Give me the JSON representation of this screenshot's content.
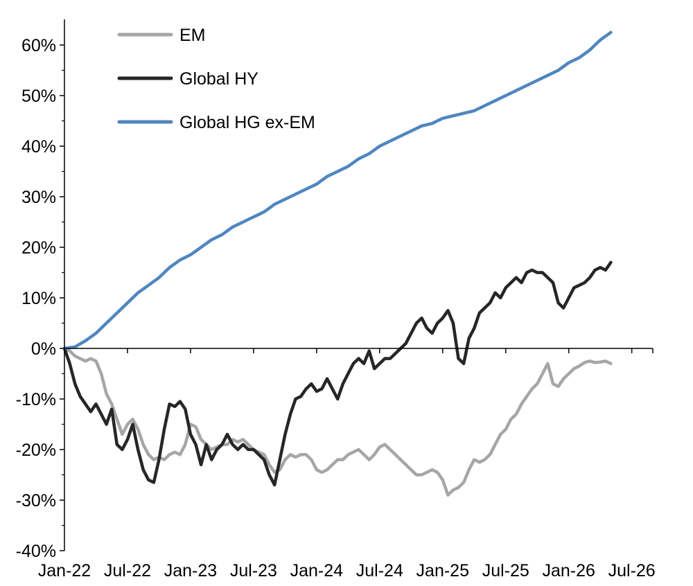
{
  "chart_data": {
    "type": "line",
    "title": "",
    "xlabel": "",
    "ylabel": "",
    "x_ticks": [
      "Jan-22",
      "Jul-22",
      "Jan-23",
      "Jul-23",
      "Jan-24",
      "Jul-24",
      "Jan-25",
      "Jul-25",
      "Jan-26",
      "Jul-26"
    ],
    "y_ticks": [
      "60%",
      "50%",
      "40%",
      "30%",
      "20%",
      "10%",
      "0%",
      "-10%",
      "-20%",
      "-30%",
      "-40%"
    ],
    "ylim": [
      -40,
      65
    ],
    "xlim": [
      0,
      56
    ],
    "y_unit": "%",
    "x_unit": "months since Jan-22",
    "legend_position": "top-left",
    "grid": false,
    "series": [
      {
        "name": "EM",
        "color": "#a6a6a6",
        "points": [
          [
            0,
            0
          ],
          [
            0.5,
            -0.5
          ],
          [
            1,
            -1.5
          ],
          [
            1.5,
            -2
          ],
          [
            2,
            -2.5
          ],
          [
            2.5,
            -2
          ],
          [
            3,
            -2.5
          ],
          [
            3.5,
            -5
          ],
          [
            4,
            -9
          ],
          [
            4.5,
            -11
          ],
          [
            5,
            -14
          ],
          [
            5.5,
            -17
          ],
          [
            6,
            -15
          ],
          [
            6.5,
            -14
          ],
          [
            7,
            -16
          ],
          [
            7.5,
            -19
          ],
          [
            8,
            -21
          ],
          [
            8.5,
            -22
          ],
          [
            9,
            -21.5
          ],
          [
            9.5,
            -22
          ],
          [
            10,
            -21
          ],
          [
            10.5,
            -20.5
          ],
          [
            11,
            -21
          ],
          [
            11.5,
            -19
          ],
          [
            12,
            -15
          ],
          [
            12.5,
            -15.5
          ],
          [
            13,
            -18
          ],
          [
            13.5,
            -19
          ],
          [
            14,
            -20
          ],
          [
            14.5,
            -19.5
          ],
          [
            15,
            -19
          ],
          [
            15.5,
            -19
          ],
          [
            16,
            -18
          ],
          [
            16.5,
            -18.5
          ],
          [
            17,
            -18
          ],
          [
            17.5,
            -19
          ],
          [
            18,
            -20
          ],
          [
            18.5,
            -20.5
          ],
          [
            19,
            -21
          ],
          [
            19.5,
            -23
          ],
          [
            20,
            -24.5
          ],
          [
            20.5,
            -24
          ],
          [
            21,
            -22
          ],
          [
            21.5,
            -21
          ],
          [
            22,
            -21.5
          ],
          [
            22.5,
            -21
          ],
          [
            23,
            -21
          ],
          [
            23.5,
            -22
          ],
          [
            24,
            -24
          ],
          [
            24.5,
            -24.5
          ],
          [
            25,
            -24
          ],
          [
            25.5,
            -23
          ],
          [
            26,
            -22
          ],
          [
            26.5,
            -22
          ],
          [
            27,
            -21
          ],
          [
            27.5,
            -20.5
          ],
          [
            28,
            -20
          ],
          [
            28.5,
            -21
          ],
          [
            29,
            -22
          ],
          [
            29.5,
            -21
          ],
          [
            30,
            -19.5
          ],
          [
            30.5,
            -19
          ],
          [
            31,
            -20
          ],
          [
            31.5,
            -21
          ],
          [
            32,
            -22
          ],
          [
            32.5,
            -23
          ],
          [
            33,
            -24
          ],
          [
            33.5,
            -25
          ],
          [
            34,
            -25
          ],
          [
            34.5,
            -24.5
          ],
          [
            35,
            -24
          ],
          [
            35.5,
            -24.5
          ],
          [
            36,
            -26
          ],
          [
            36.5,
            -29
          ],
          [
            37,
            -28
          ],
          [
            37.5,
            -27.5
          ],
          [
            38,
            -26.5
          ],
          [
            38.5,
            -24
          ],
          [
            39,
            -22
          ],
          [
            39.5,
            -22.5
          ],
          [
            40,
            -22
          ],
          [
            40.5,
            -21
          ],
          [
            41,
            -19
          ],
          [
            41.5,
            -17
          ],
          [
            42,
            -16
          ],
          [
            42.5,
            -14
          ],
          [
            43,
            -13
          ],
          [
            43.5,
            -11
          ],
          [
            44,
            -9.5
          ],
          [
            44.5,
            -8
          ],
          [
            45,
            -7
          ],
          [
            45.5,
            -5
          ],
          [
            46,
            -3
          ],
          [
            46.5,
            -7
          ],
          [
            47,
            -7.5
          ],
          [
            47.5,
            -6
          ],
          [
            48,
            -5
          ],
          [
            48.5,
            -4
          ],
          [
            49,
            -3.5
          ],
          [
            49.5,
            -2.8
          ],
          [
            50,
            -2.5
          ],
          [
            50.5,
            -2.8
          ],
          [
            51,
            -2.7
          ],
          [
            51.5,
            -2.5
          ],
          [
            52,
            -3
          ]
        ]
      },
      {
        "name": "Global HY",
        "color": "#262626",
        "points": [
          [
            0,
            0
          ],
          [
            0.5,
            -3
          ],
          [
            1,
            -7
          ],
          [
            1.5,
            -9.5
          ],
          [
            2,
            -11
          ],
          [
            2.5,
            -12.5
          ],
          [
            3,
            -11
          ],
          [
            3.5,
            -13
          ],
          [
            4,
            -15
          ],
          [
            4.5,
            -12
          ],
          [
            5,
            -19
          ],
          [
            5.5,
            -20
          ],
          [
            6,
            -18
          ],
          [
            6.5,
            -15
          ],
          [
            7,
            -20
          ],
          [
            7.5,
            -24
          ],
          [
            8,
            -26
          ],
          [
            8.5,
            -26.5
          ],
          [
            9,
            -22
          ],
          [
            9.5,
            -16
          ],
          [
            10,
            -11
          ],
          [
            10.5,
            -11.5
          ],
          [
            11,
            -10.5
          ],
          [
            11.5,
            -12
          ],
          [
            12,
            -17
          ],
          [
            12.5,
            -19
          ],
          [
            13,
            -23
          ],
          [
            13.5,
            -19
          ],
          [
            14,
            -22
          ],
          [
            14.5,
            -20
          ],
          [
            15,
            -19
          ],
          [
            15.5,
            -17
          ],
          [
            16,
            -19
          ],
          [
            16.5,
            -20
          ],
          [
            17,
            -19
          ],
          [
            17.5,
            -20
          ],
          [
            18,
            -20
          ],
          [
            19,
            -22
          ],
          [
            19.5,
            -25
          ],
          [
            20,
            -27
          ],
          [
            20.5,
            -22
          ],
          [
            21,
            -17
          ],
          [
            21.5,
            -13
          ],
          [
            22,
            -10
          ],
          [
            22.5,
            -9.5
          ],
          [
            23,
            -8
          ],
          [
            23.5,
            -7
          ],
          [
            24,
            -8.5
          ],
          [
            24.5,
            -8
          ],
          [
            25,
            -6
          ],
          [
            25.5,
            -8
          ],
          [
            26,
            -10
          ],
          [
            26.5,
            -7
          ],
          [
            27,
            -5
          ],
          [
            27.5,
            -3
          ],
          [
            28,
            -2
          ],
          [
            28.5,
            -3
          ],
          [
            29,
            -0.5
          ],
          [
            29.5,
            -4
          ],
          [
            30,
            -3
          ],
          [
            30.5,
            -2
          ],
          [
            31,
            -2
          ],
          [
            31.5,
            -1
          ],
          [
            32,
            0
          ],
          [
            32.5,
            1
          ],
          [
            33,
            3
          ],
          [
            33.5,
            5
          ],
          [
            34,
            6
          ],
          [
            34.5,
            4
          ],
          [
            35,
            3
          ],
          [
            35.5,
            5
          ],
          [
            36,
            6
          ],
          [
            36.5,
            7.5
          ],
          [
            37,
            5
          ],
          [
            37.5,
            -2
          ],
          [
            38,
            -3
          ],
          [
            38.5,
            2
          ],
          [
            39,
            4
          ],
          [
            39.5,
            7
          ],
          [
            40,
            8
          ],
          [
            40.5,
            9
          ],
          [
            41,
            11
          ],
          [
            41.5,
            10
          ],
          [
            42,
            12
          ],
          [
            42.5,
            13
          ],
          [
            43,
            14
          ],
          [
            43.5,
            13
          ],
          [
            44,
            15
          ],
          [
            44.5,
            15.5
          ],
          [
            45,
            15
          ],
          [
            45.5,
            15
          ],
          [
            46,
            14
          ],
          [
            46.5,
            13
          ],
          [
            47,
            9
          ],
          [
            47.5,
            8
          ],
          [
            48,
            10
          ],
          [
            48.5,
            12
          ],
          [
            49,
            12.5
          ],
          [
            49.5,
            13
          ],
          [
            50,
            14
          ],
          [
            50.5,
            15.5
          ],
          [
            51,
            16
          ],
          [
            51.5,
            15.5
          ],
          [
            52,
            17
          ]
        ]
      },
      {
        "name": "Global HG ex-EM",
        "color": "#4f86c0",
        "points": [
          [
            0,
            0
          ],
          [
            1,
            0.3
          ],
          [
            2,
            1.5
          ],
          [
            3,
            3
          ],
          [
            4,
            5
          ],
          [
            5,
            7
          ],
          [
            6,
            9
          ],
          [
            7,
            11
          ],
          [
            8,
            12.5
          ],
          [
            9,
            14
          ],
          [
            10,
            16
          ],
          [
            11,
            17.5
          ],
          [
            12,
            18.5
          ],
          [
            13,
            20
          ],
          [
            14,
            21.5
          ],
          [
            15,
            22.5
          ],
          [
            16,
            24
          ],
          [
            17,
            25
          ],
          [
            18,
            26
          ],
          [
            19,
            27
          ],
          [
            20,
            28.5
          ],
          [
            21,
            29.5
          ],
          [
            22,
            30.5
          ],
          [
            23,
            31.5
          ],
          [
            24,
            32.5
          ],
          [
            25,
            34
          ],
          [
            26,
            35
          ],
          [
            27,
            36
          ],
          [
            28,
            37.5
          ],
          [
            29,
            38.5
          ],
          [
            30,
            40
          ],
          [
            31,
            41
          ],
          [
            32,
            42
          ],
          [
            33,
            43
          ],
          [
            34,
            44
          ],
          [
            35,
            44.5
          ],
          [
            36,
            45.5
          ],
          [
            37,
            46
          ],
          [
            38,
            46.5
          ],
          [
            39,
            47
          ],
          [
            40,
            48
          ],
          [
            41,
            49
          ],
          [
            42,
            50
          ],
          [
            43,
            51
          ],
          [
            44,
            52
          ],
          [
            45,
            53
          ],
          [
            46,
            54
          ],
          [
            47,
            55
          ],
          [
            48,
            56.5
          ],
          [
            49,
            57.5
          ],
          [
            50,
            59
          ],
          [
            51,
            61
          ],
          [
            52,
            62.5
          ]
        ]
      }
    ]
  }
}
